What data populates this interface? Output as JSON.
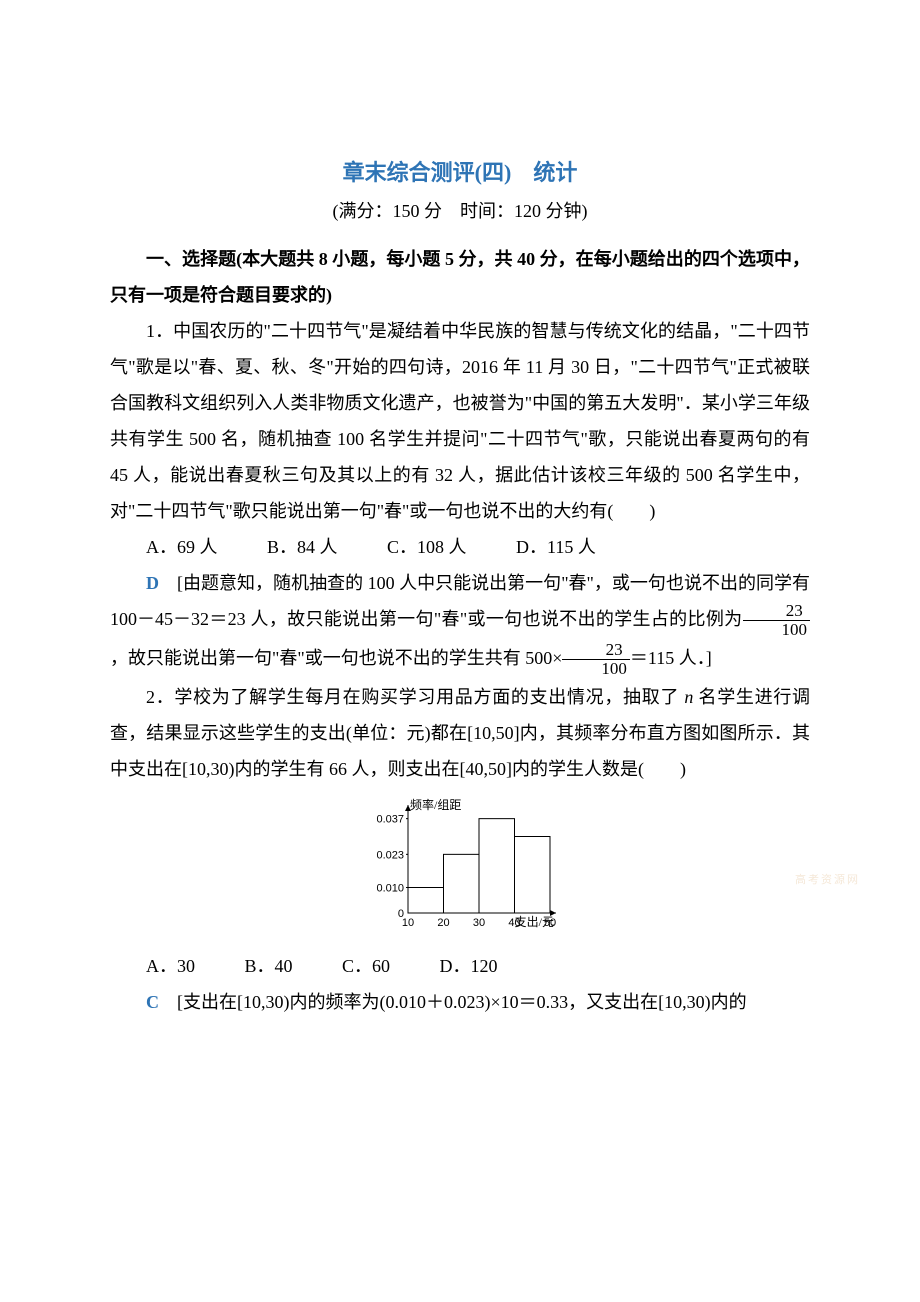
{
  "title": "章末综合测评(四)　统计",
  "subtitle": "(满分：150 分　时间：120 分钟)",
  "section_heading": "一、选择题(本大题共 8 小题，每小题 5 分，共 40 分，在每小题给出的四个选项中，只有一项是符合题目要求的)",
  "q1": {
    "text": "1．中国农历的\"二十四节气\"是凝结着中华民族的智慧与传统文化的结晶，\"二十四节气\"歌是以\"春、夏、秋、冬\"开始的四句诗，2016 年 11 月 30 日，\"二十四节气\"正式被联合国教科文组织列入人类非物质文化遗产，也被誉为\"中国的第五大发明\"．某小学三年级共有学生 500 名，随机抽查 100 名学生并提问\"二十四节气\"歌，只能说出春夏两句的有 45 人，能说出春夏秋三句及其以上的有 32 人，据此估计该校三年级的 500 名学生中，对\"二十四节气\"歌只能说出第一句\"春\"或一句也说不出的大约有(　　)",
    "options": {
      "A": "A．69 人",
      "B": "B．84 人",
      "C": "C．108 人",
      "D": "D．115 人"
    },
    "answer_letter": "D",
    "explanation_prefix": "　[由题意知，随机抽查的 100 人中只能说出第一句\"春\"，或一句也说不出的同学有 100－45－32＝23 人，故只能说出第一句\"春\"或一句也说不出的学生占的比例为",
    "frac1": {
      "num": "23",
      "den": "100"
    },
    "explanation_mid": "，故只能说出第一句\"春\"或一句也说不出的学生共有 500×",
    "frac2": {
      "num": "23",
      "den": "100"
    },
    "explanation_suffix": "＝115 人．]"
  },
  "q2": {
    "text_prefix": "2．学校为了解学生每月在购买学习用品方面的支出情况，抽取了 ",
    "text_mid": " 名学生进行调查，结果显示这些学生的支出(单位：元)都在[10,50]内，其频率分布直方图如图所示．其中支出在[10,30)内的学生有 66 人，则支出在[40,50]内的学生人数是(　　)",
    "options": {
      "A": "A．30",
      "B": "B．40",
      "C": "C．60",
      "D": "D．120"
    },
    "answer_letter": "C",
    "explanation": "　[支出在[10,30)内的频率为(0.010＋0.023)×10＝0.33，又支出在[10,30)内的"
  },
  "histogram": {
    "type": "histogram",
    "y_label": "频率/组距",
    "x_label": "支出/元",
    "x_ticks": [
      "10",
      "20",
      "30",
      "40",
      "50"
    ],
    "y_ticks": [
      "0",
      "0.010",
      "0.023",
      "0.037"
    ],
    "bars": [
      {
        "x_start": 10,
        "x_end": 20,
        "height": 0.01
      },
      {
        "x_start": 20,
        "x_end": 30,
        "height": 0.023
      },
      {
        "x_start": 30,
        "x_end": 40,
        "height": 0.037
      },
      {
        "x_start": 40,
        "x_end": 50,
        "height": 0.03
      }
    ],
    "axis_color": "#000000",
    "bar_fill": "#ffffff",
    "bar_stroke": "#000000",
    "font_size": 11,
    "width": 180,
    "height": 130
  },
  "watermark": "高考资源网",
  "colors": {
    "title": "#2e74b5",
    "answer": "#2e74b5",
    "text": "#000000",
    "background": "#ffffff"
  }
}
